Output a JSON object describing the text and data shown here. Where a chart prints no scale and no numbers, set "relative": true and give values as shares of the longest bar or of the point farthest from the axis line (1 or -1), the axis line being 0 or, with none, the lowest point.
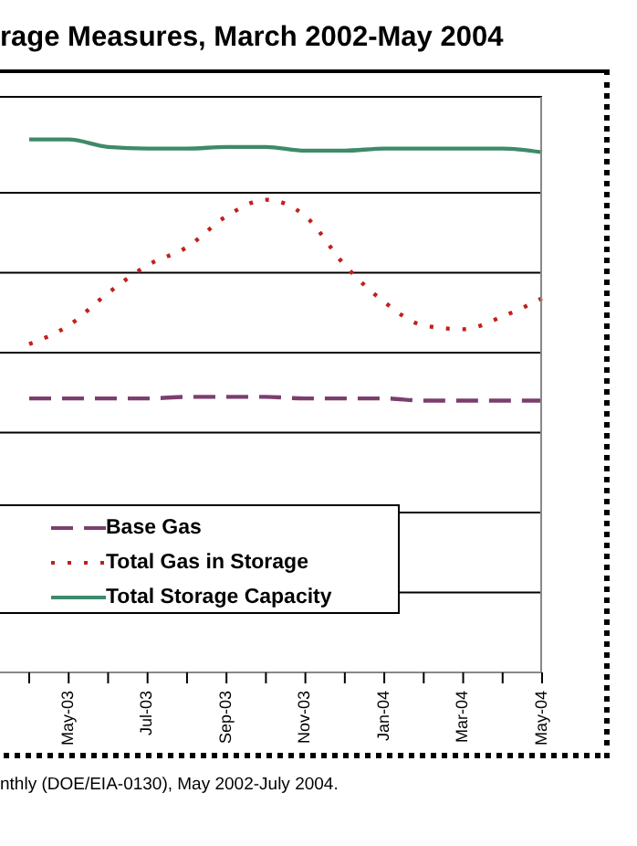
{
  "chart_data": {
    "type": "line",
    "title": "rage Measures, March 2002-May 2004",
    "relative": true,
    "grid": "y",
    "legend": "bottom left",
    "categories": [
      null,
      "May-03",
      null,
      "Jul-03",
      null,
      "Sep-03",
      null,
      "Nov-03",
      null,
      "Jan-04",
      null,
      "Mar-04",
      null,
      "May-04"
    ],
    "series": [
      {
        "name": "Base Gas",
        "color": "#7b3f6e",
        "line_style": "dashed",
        "values": [
          0.514,
          0.514,
          0.514,
          0.514,
          0.517,
          0.517,
          0.517,
          0.514,
          0.514,
          0.514,
          0.51,
          0.51,
          0.51,
          0.51
        ]
      },
      {
        "name": "Total Gas in Storage",
        "color": "#c0201e",
        "line_style": "dotted",
        "values": [
          0.616,
          0.651,
          0.712,
          0.764,
          0.798,
          0.856,
          0.887,
          0.856,
          0.764,
          0.695,
          0.651,
          0.644,
          0.668,
          0.702
        ]
      },
      {
        "name": "Total Storage Capacity",
        "color": "#3e8a6a",
        "line_style": "solid",
        "values": [
          1,
          1,
          0.986,
          0.983,
          0.983,
          0.986,
          0.986,
          0.979,
          0.979,
          0.983,
          0.983,
          0.983,
          0.983,
          0.976
        ]
      }
    ],
    "annotations": [
      "nthly (DOE/EIA-0130), May 2002-July 2004."
    ]
  }
}
